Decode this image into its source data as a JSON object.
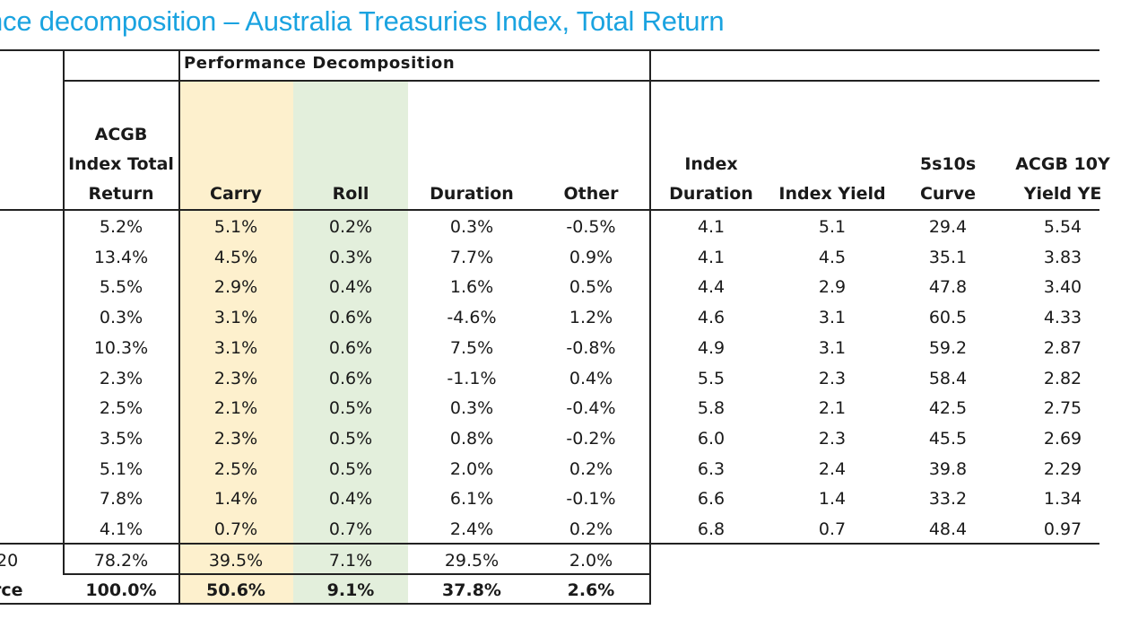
{
  "title": "nce decomposition – Australia Treasuries Index, Total Return",
  "group_header": "Performance Decomposition",
  "headers": {
    "total_return": [
      "ACGB",
      "Index Total",
      "Return"
    ],
    "carry": [
      "Carry"
    ],
    "roll": [
      "Roll"
    ],
    "duration": [
      "Duration"
    ],
    "other": [
      "Other"
    ],
    "index_duration": [
      "Index",
      "Duration"
    ],
    "index_yield": [
      "Index Yield"
    ],
    "curve": [
      "5s10s",
      "Curve"
    ],
    "acgb10": [
      "ACGB 10Y",
      "Yield YE"
    ]
  },
  "rows": [
    [
      "5.2%",
      "5.1%",
      "0.2%",
      "0.3%",
      "-0.5%",
      "4.1",
      "5.1",
      "29.4",
      "5.54"
    ],
    [
      "13.4%",
      "4.5%",
      "0.3%",
      "7.7%",
      "0.9%",
      "4.1",
      "4.5",
      "35.1",
      "3.83"
    ],
    [
      "5.5%",
      "2.9%",
      "0.4%",
      "1.6%",
      "0.5%",
      "4.4",
      "2.9",
      "47.8",
      "3.40"
    ],
    [
      "0.3%",
      "3.1%",
      "0.6%",
      "-4.6%",
      "1.2%",
      "4.6",
      "3.1",
      "60.5",
      "4.33"
    ],
    [
      "10.3%",
      "3.1%",
      "0.6%",
      "7.5%",
      "-0.8%",
      "4.9",
      "3.1",
      "59.2",
      "2.87"
    ],
    [
      "2.3%",
      "2.3%",
      "0.6%",
      "-1.1%",
      "0.4%",
      "5.5",
      "2.3",
      "58.4",
      "2.82"
    ],
    [
      "2.5%",
      "2.1%",
      "0.5%",
      "0.3%",
      "-0.4%",
      "5.8",
      "2.1",
      "42.5",
      "2.75"
    ],
    [
      "3.5%",
      "2.3%",
      "0.5%",
      "0.8%",
      "-0.2%",
      "6.0",
      "2.3",
      "45.5",
      "2.69"
    ],
    [
      "5.1%",
      "2.5%",
      "0.5%",
      "2.0%",
      "0.2%",
      "6.3",
      "2.4",
      "39.8",
      "2.29"
    ],
    [
      "7.8%",
      "1.4%",
      "0.4%",
      "6.1%",
      "-0.1%",
      "6.6",
      "1.4",
      "33.2",
      "1.34"
    ],
    [
      "4.1%",
      "0.7%",
      "0.7%",
      "2.4%",
      "0.2%",
      "6.8",
      "0.7",
      "48.4",
      "0.97"
    ]
  ],
  "total_row": {
    "label": "20",
    "values": [
      "78.2%",
      "39.5%",
      "7.1%",
      "29.5%",
      "2.0%"
    ]
  },
  "share_row": {
    "label": "rce",
    "values": [
      "100.0%",
      "50.6%",
      "9.1%",
      "37.8%",
      "2.6%"
    ]
  }
}
